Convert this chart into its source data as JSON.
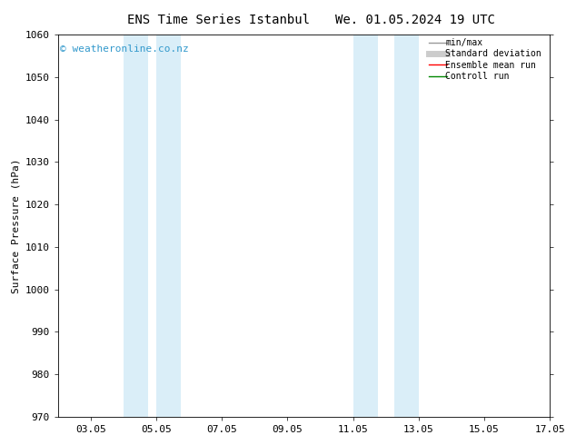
{
  "title_left": "ENS Time Series Istanbul",
  "title_right": "We. 01.05.2024 19 UTC",
  "ylabel": "Surface Pressure (hPa)",
  "ylim": [
    970,
    1060
  ],
  "yticks": [
    970,
    980,
    990,
    1000,
    1010,
    1020,
    1030,
    1040,
    1050,
    1060
  ],
  "xtick_labels": [
    "03.05",
    "05.05",
    "07.05",
    "09.05",
    "11.05",
    "13.05",
    "15.05",
    "17.05"
  ],
  "xlim_days": [
    2,
    16
  ],
  "shade_bands": [
    {
      "x_start": 4.0,
      "x_end": 4.75
    },
    {
      "x_start": 5.0,
      "x_end": 5.75
    },
    {
      "x_start": 11.0,
      "x_end": 11.75
    },
    {
      "x_start": 12.25,
      "x_end": 13.0
    }
  ],
  "shade_color": "#daeef8",
  "background_color": "#ffffff",
  "legend_entries": [
    {
      "label": "min/max",
      "color": "#999999",
      "linewidth": 1.0
    },
    {
      "label": "Standard deviation",
      "color": "#cccccc",
      "linewidth": 5
    },
    {
      "label": "Ensemble mean run",
      "color": "#ff0000",
      "linewidth": 1.0
    },
    {
      "label": "Controll run",
      "color": "#008800",
      "linewidth": 1.0
    }
  ],
  "watermark_text": "© weatheronline.co.nz",
  "watermark_color": "#3399cc",
  "watermark_fontsize": 8,
  "title_fontsize": 10,
  "axis_label_fontsize": 8,
  "tick_fontsize": 8,
  "legend_fontsize": 7,
  "figsize": [
    6.34,
    4.9
  ],
  "dpi": 100
}
